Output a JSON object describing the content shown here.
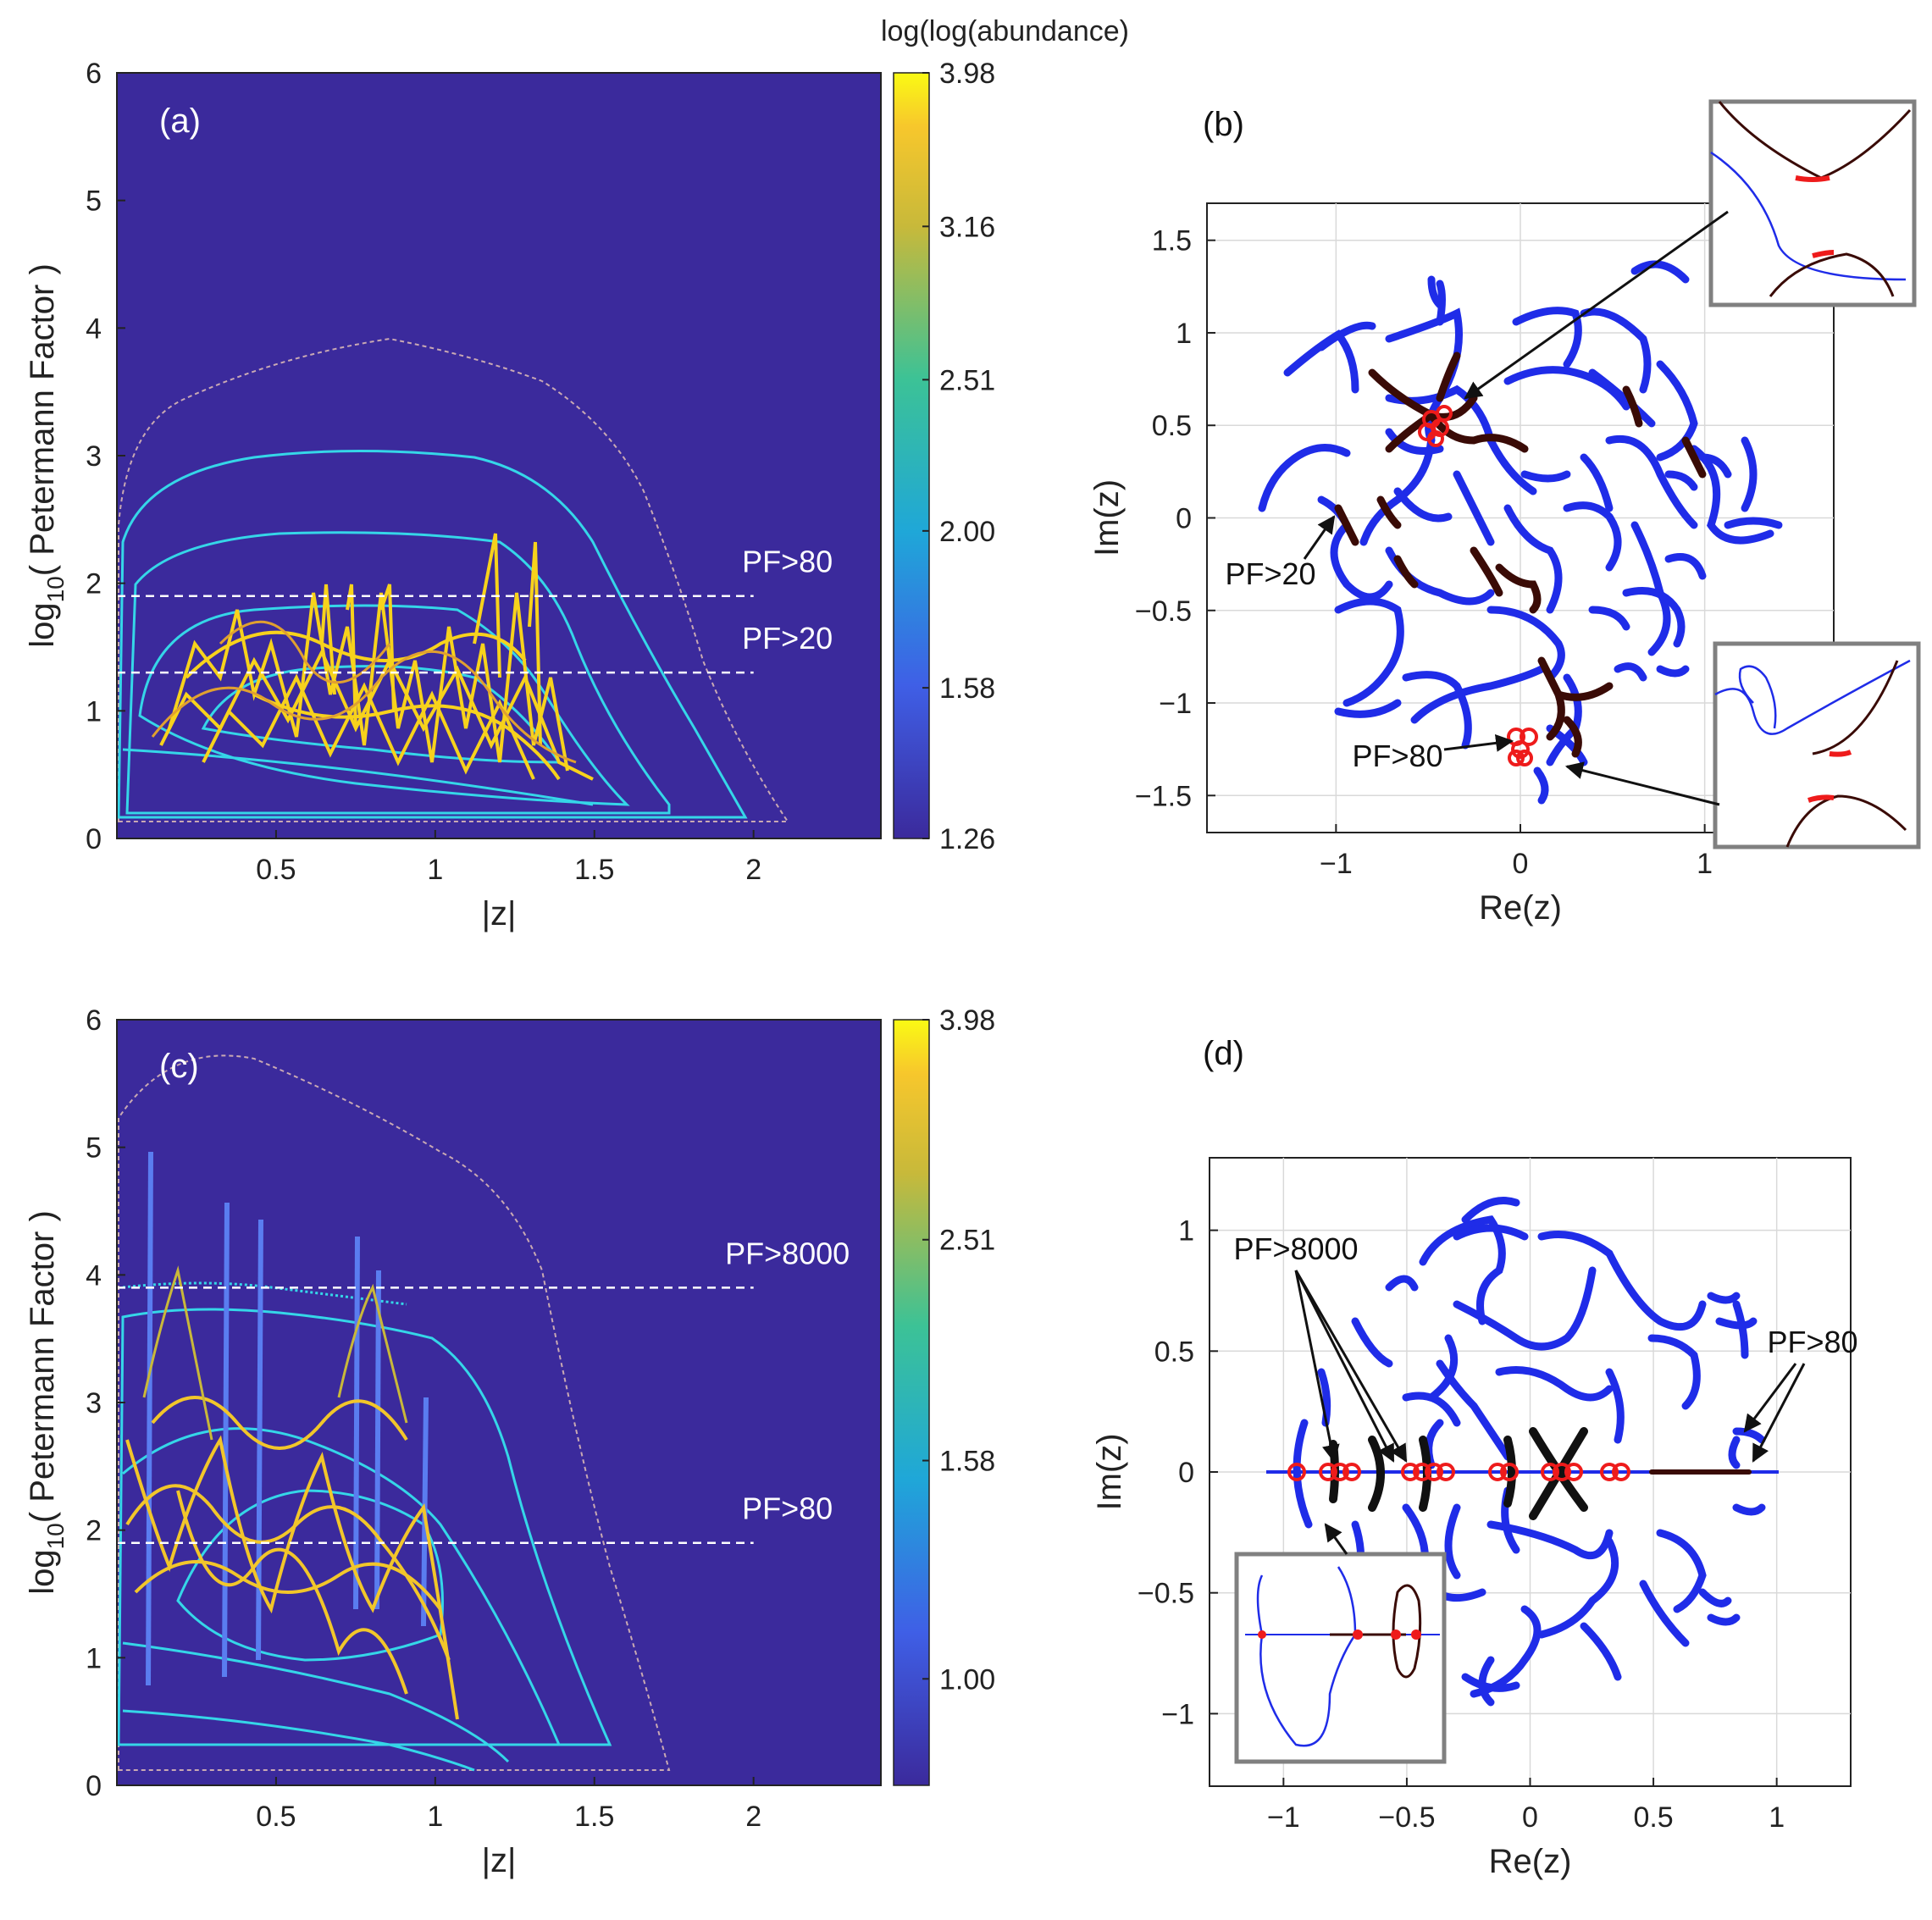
{
  "figure": {
    "colorbar_title": "log(log(abundance)",
    "colors": {
      "background": "#3b2a9c",
      "contour": "#35d6e8",
      "outer_contour": "#c9a9b3",
      "threshold_line": "#ffffff",
      "trajectory": "#1f2ce8",
      "high_pf": "#3a0b06",
      "exceptional_point": "#ee1b1b",
      "inset_border": "#808080"
    }
  },
  "chart_data": [
    {
      "panel": "(a)",
      "type": "heatmap",
      "xlabel": "|z|",
      "ylabel_prefix": "log",
      "ylabel_sub": "10",
      "ylabel_rest": "( Petermann Factor )",
      "xlim": [
        0,
        2.4
      ],
      "ylim": [
        0,
        6
      ],
      "x_ticks": [
        "0.5",
        "1",
        "1.5",
        "2"
      ],
      "y_ticks": [
        "0",
        "1",
        "2",
        "3",
        "4",
        "5",
        "6"
      ],
      "colorbar": {
        "ticks": [
          "3.98",
          "3.16",
          "2.51",
          "2.00",
          "1.58",
          "1.26"
        ],
        "range": [
          1.26,
          3.98
        ]
      },
      "thresholds": [
        {
          "label": "PF>80",
          "log10_pf": 1.9,
          "x_end": 2.0
        },
        {
          "label": "PF>20",
          "log10_pf": 1.3,
          "x_end": 2.0
        }
      ]
    },
    {
      "panel": "(b)",
      "type": "scatter",
      "xlabel": "Re(z)",
      "ylabel": "Im(z)",
      "xlim": [
        -1.7,
        1.7
      ],
      "ylim": [
        -1.7,
        1.7
      ],
      "x_ticks": [
        "−1",
        "0",
        "1"
      ],
      "y_ticks": [
        "1.5",
        "1",
        "0.5",
        "0",
        "−0.5",
        "−1",
        "−1.5"
      ],
      "annotations": [
        "PF>20",
        "PF>80"
      ]
    },
    {
      "panel": "(c)",
      "type": "heatmap",
      "xlabel": "|z|",
      "ylabel_prefix": "log",
      "ylabel_sub": "10",
      "ylabel_rest": "( Petermann Factor )",
      "xlim": [
        0,
        2.4
      ],
      "ylim": [
        0,
        6
      ],
      "x_ticks": [
        "0.5",
        "1",
        "1.5",
        "2"
      ],
      "y_ticks": [
        "0",
        "1",
        "2",
        "3",
        "4",
        "5",
        "6"
      ],
      "colorbar": {
        "ticks": [
          "3.98",
          "2.51",
          "1.58",
          "1.00"
        ],
        "range": [
          0.8,
          3.98
        ]
      },
      "thresholds": [
        {
          "label": "PF>8000",
          "log10_pf": 3.9,
          "x_end": 2.0
        },
        {
          "label": "PF>80",
          "log10_pf": 1.9,
          "x_end": 2.0
        }
      ]
    },
    {
      "panel": "(d)",
      "type": "scatter",
      "xlabel": "Re(z)",
      "ylabel": "Im(z)",
      "xlim": [
        -1.3,
        1.3
      ],
      "ylim": [
        -1.3,
        1.3
      ],
      "x_ticks": [
        "−1",
        "−0.5",
        "0",
        "0.5",
        "1"
      ],
      "y_ticks": [
        "1",
        "0.5",
        "0",
        "−0.5",
        "−1"
      ],
      "annotations": [
        "PF>8000",
        "PF>80"
      ]
    }
  ]
}
